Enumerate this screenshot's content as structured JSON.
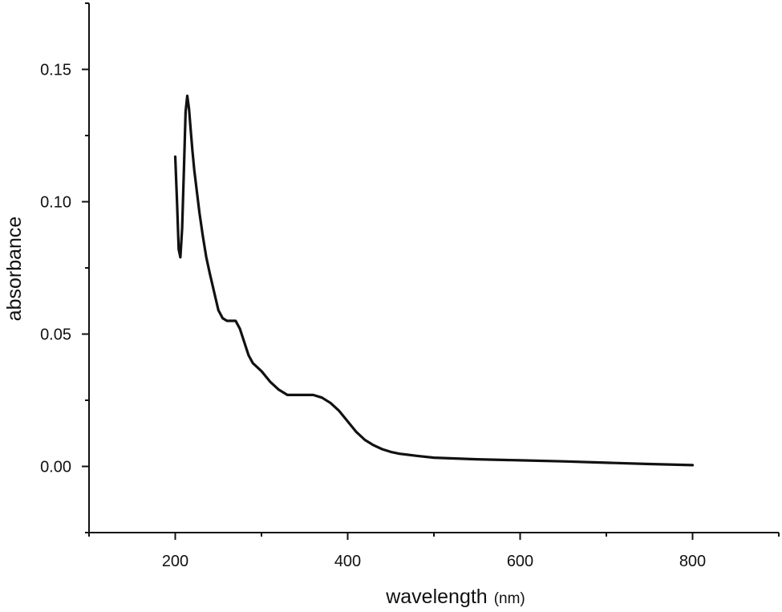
{
  "chart_data": {
    "type": "line",
    "title": "",
    "xlabel": "wavelength",
    "xunit": "(nm)",
    "ylabel": "absorbance",
    "xlim": [
      100,
      900
    ],
    "ylim": [
      -0.025,
      0.175
    ],
    "xticks": [
      200,
      400,
      600,
      800
    ],
    "xtick_labels": [
      "200",
      "400",
      "600",
      "800"
    ],
    "yticks": [
      0.0,
      0.05,
      0.1,
      0.15
    ],
    "ytick_labels": [
      "0.00",
      "0.05",
      "0.10",
      "0.15"
    ],
    "grid": false,
    "legend": "none",
    "line_color": "#111111",
    "series": [
      {
        "x": [
          200,
          202,
          204,
          206,
          208,
          210,
          212,
          214,
          216,
          218,
          220,
          222,
          225,
          228,
          232,
          236,
          240,
          245,
          250,
          255,
          260,
          265,
          270,
          275,
          280,
          285,
          290,
          300,
          310,
          320,
          330,
          340,
          350,
          360,
          370,
          380,
          390,
          400,
          410,
          420,
          430,
          440,
          450,
          460,
          480,
          500,
          550,
          600,
          650,
          700,
          750,
          800
        ],
        "y": [
          0.117,
          0.1,
          0.082,
          0.079,
          0.09,
          0.112,
          0.134,
          0.14,
          0.135,
          0.127,
          0.119,
          0.112,
          0.104,
          0.096,
          0.087,
          0.079,
          0.073,
          0.066,
          0.059,
          0.056,
          0.055,
          0.055,
          0.055,
          0.052,
          0.047,
          0.042,
          0.039,
          0.036,
          0.032,
          0.029,
          0.027,
          0.027,
          0.027,
          0.027,
          0.026,
          0.024,
          0.021,
          0.017,
          0.013,
          0.01,
          0.008,
          0.0065,
          0.0055,
          0.0048,
          0.004,
          0.0033,
          0.0027,
          0.0023,
          0.0019,
          0.0014,
          0.0009,
          0.0005
        ]
      }
    ]
  }
}
